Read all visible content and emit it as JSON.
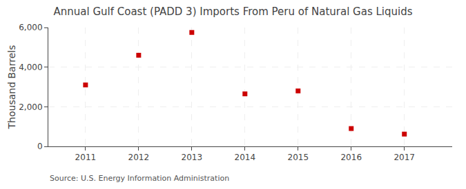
{
  "chart_data": {
    "type": "scatter",
    "title": "Annual Gulf Coast (PADD 3) Imports From Peru of Natural Gas Liquids",
    "ylabel": "Thousand Barrels",
    "annotations": [
      "Source: U.S. Energy Information Administration"
    ],
    "x": [
      2011,
      2012,
      2013,
      2014,
      2015,
      2016,
      2017
    ],
    "values": [
      3100,
      4600,
      5750,
      2650,
      2800,
      900,
      620
    ],
    "color": "#cc0000",
    "marker": "square",
    "xlim": [
      2010.3,
      2017.9
    ],
    "xticks": [
      2011,
      2012,
      2013,
      2014,
      2015,
      2016,
      2017
    ],
    "ylim": [
      0,
      6000
    ],
    "yticks": [
      0,
      {
        "value": 2000,
        "label": "2,000"
      },
      {
        "value": 4000,
        "label": "4,000"
      },
      {
        "value": 6000,
        "label": "6,000"
      }
    ],
    "grid": true
  }
}
